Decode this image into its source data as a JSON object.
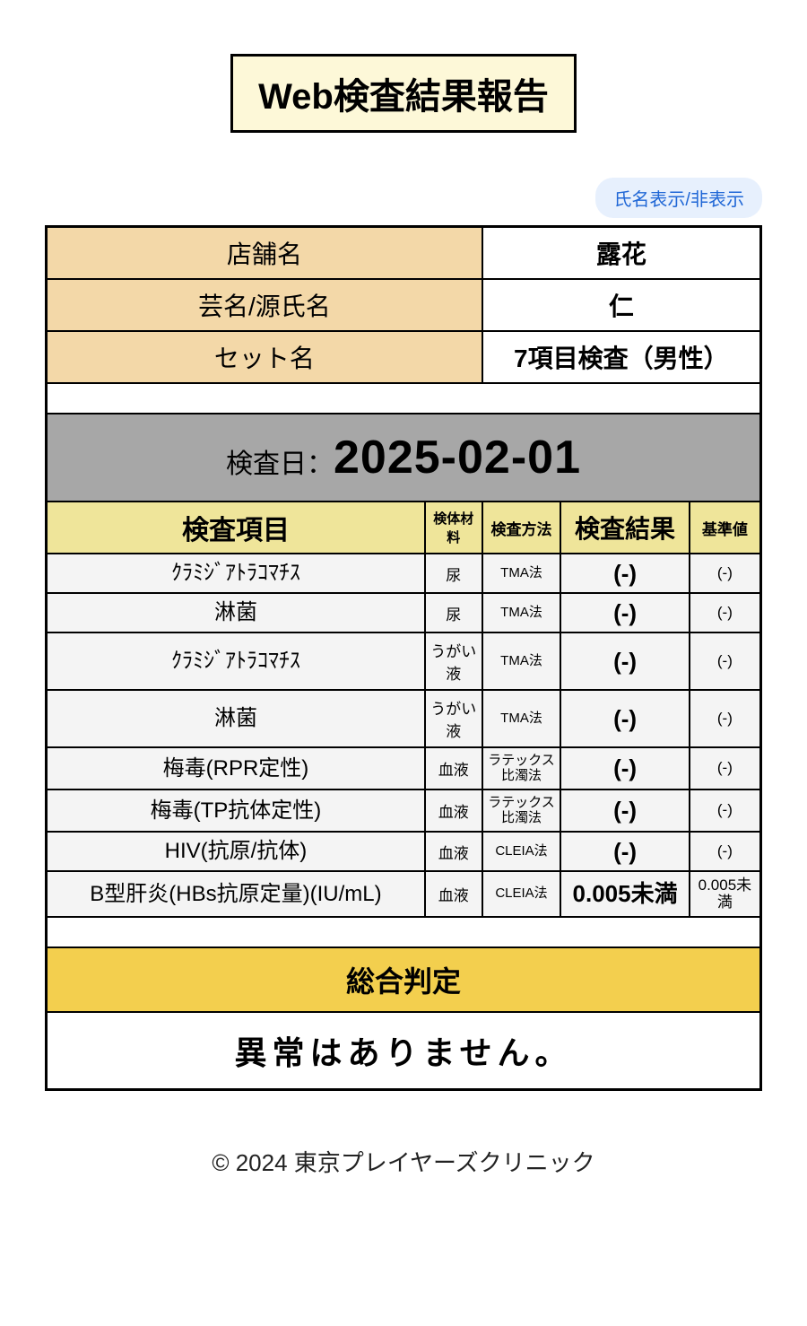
{
  "title": "Web検査結果報告",
  "toggle_label": "氏名表示/非表示",
  "info": [
    {
      "label": "店舗名",
      "value": "露花",
      "bold": true
    },
    {
      "label": "芸名/源氏名",
      "value": "仁",
      "bold": true
    },
    {
      "label": "セット名",
      "value": "7項目検査（男性）",
      "bold": true
    }
  ],
  "exam_date": {
    "label": "検査日：",
    "value": "2025-02-01"
  },
  "columns": {
    "item": "検査項目",
    "sample": "検体材料",
    "method": "検査方法",
    "result": "検査結果",
    "ref": "基準値"
  },
  "rows": [
    {
      "item": "ｸﾗﾐｼﾞｱﾄﾗｺﾏﾁｽ",
      "sample": "尿",
      "method": "TMA法",
      "result": "(-)",
      "ref": "(-)"
    },
    {
      "item": "淋菌",
      "sample": "尿",
      "method": "TMA法",
      "result": "(-)",
      "ref": "(-)"
    },
    {
      "item": "ｸﾗﾐｼﾞｱﾄﾗｺﾏﾁｽ",
      "sample": "うがい液",
      "method": "TMA法",
      "result": "(-)",
      "ref": "(-)"
    },
    {
      "item": "淋菌",
      "sample": "うがい液",
      "method": "TMA法",
      "result": "(-)",
      "ref": "(-)"
    },
    {
      "item": "梅毒(RPR定性)",
      "sample": "血液",
      "method": "ラテックス比濁法",
      "result": "(-)",
      "ref": "(-)"
    },
    {
      "item": "梅毒(TP抗体定性)",
      "sample": "血液",
      "method": "ラテックス比濁法",
      "result": "(-)",
      "ref": "(-)"
    },
    {
      "item": "HIV(抗原/抗体)",
      "sample": "血液",
      "method": "CLEIA法",
      "result": "(-)",
      "ref": "(-)"
    },
    {
      "item": "B型肝炎(HBs抗原定量)(IU/mL)",
      "sample": "血液",
      "method": "CLEIA法",
      "result": "0.005未満",
      "ref": "0.005未満"
    }
  ],
  "overall": {
    "header": "総合判定",
    "value": "異常はありません。"
  },
  "footer": "© 2024 東京プレイヤーズクリニック",
  "style": {
    "title_bg": "#fdf8d8",
    "info_label_bg": "#f3d8a8",
    "examdate_bg": "#a7a7a7",
    "colhead_bg": "#efe59a",
    "row_bg": "#f4f4f4",
    "overall_bg": "#f3cf4e",
    "toggle_bg": "#e7f0fd",
    "toggle_fg": "#2067d6"
  }
}
